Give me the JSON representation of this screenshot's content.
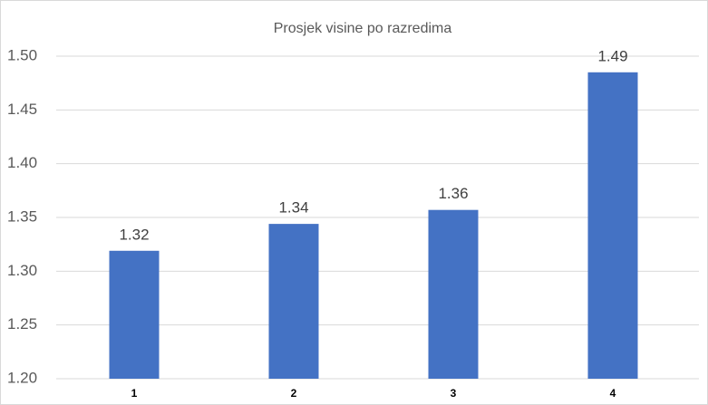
{
  "chart_data": {
    "type": "bar",
    "title": "Prosjek visine po razredima",
    "categories": [
      "1",
      "2",
      "3",
      "4"
    ],
    "values": [
      1.319,
      1.344,
      1.357,
      1.485
    ],
    "value_labels": [
      "1.32",
      "1.34",
      "1.36",
      "1.49"
    ],
    "color": "#4472c4",
    "ylim": [
      1.2,
      1.5
    ],
    "yticks": [
      {
        "value": 1.2,
        "label": "1.20"
      },
      {
        "value": 1.25,
        "label": "1.25"
      },
      {
        "value": 1.3,
        "label": "1.30"
      },
      {
        "value": 1.35,
        "label": "1.35"
      },
      {
        "value": 1.4,
        "label": "1.40"
      },
      {
        "value": 1.45,
        "label": "1.45"
      },
      {
        "value": 1.5,
        "label": "1.50"
      }
    ],
    "grid": true
  }
}
